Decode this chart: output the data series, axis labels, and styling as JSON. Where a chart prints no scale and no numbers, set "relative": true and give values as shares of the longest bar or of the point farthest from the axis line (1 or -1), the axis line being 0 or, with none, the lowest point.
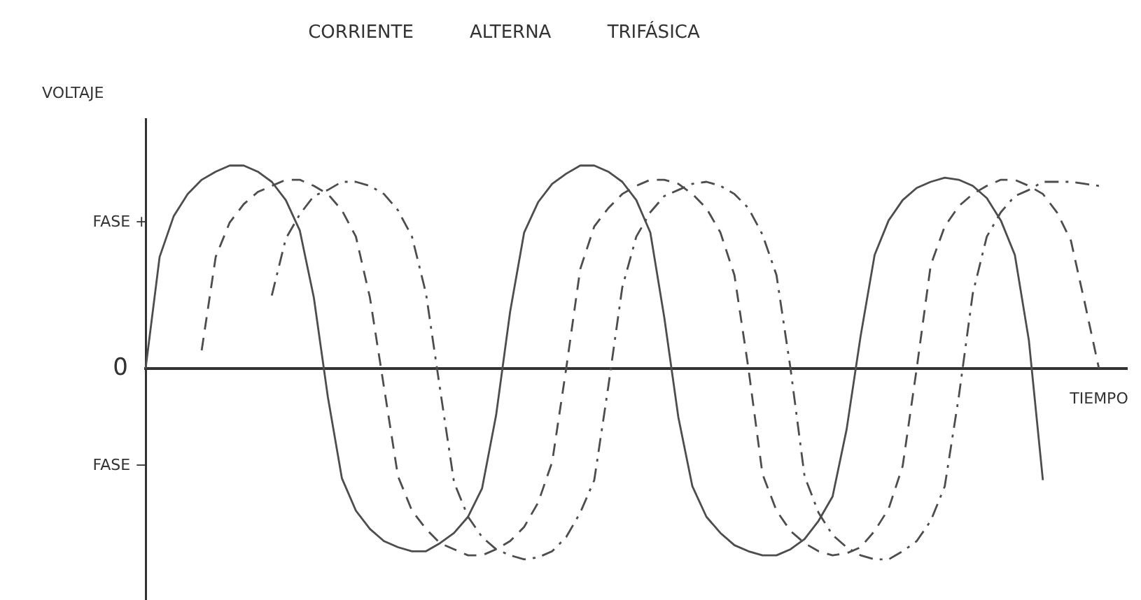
{
  "chart_data": {
    "type": "line",
    "title": "CORRIENTE ALTERNA TRIFÁSICA",
    "xlabel": "TIEMPO",
    "ylabel": "VOLTAJE",
    "relative": true,
    "legend": false,
    "grid": false,
    "marker": "none",
    "annotations": [
      "FASE +",
      "0",
      "FASE −"
    ],
    "categories": [
      null,
      null,
      null,
      null,
      null,
      null,
      null,
      null,
      null,
      null,
      null,
      null,
      null,
      null,
      null,
      null,
      null,
      null,
      null,
      null,
      null,
      null,
      null,
      null,
      null,
      null,
      null,
      null,
      null,
      null,
      null,
      null,
      null,
      null,
      null,
      null,
      null,
      null,
      null,
      null,
      null,
      null,
      null,
      null,
      null,
      null,
      null,
      null,
      null,
      null,
      null,
      null,
      null,
      null,
      null,
      null,
      null,
      null,
      null,
      null,
      null,
      null,
      null,
      null,
      null,
      null,
      null,
      null,
      null,
      null,
      null
    ],
    "series": [
      {
        "color": "#4d4d4d",
        "line_style": "solid",
        "values": [
          0,
          0.55,
          0.75,
          0.86,
          0.93,
          0.97,
          1,
          1,
          0.97,
          0.92,
          0.83,
          0.68,
          0.35,
          -0.14,
          -0.54,
          -0.7,
          -0.79,
          -0.85,
          -0.88,
          -0.9,
          -0.9,
          -0.86,
          -0.81,
          -0.73,
          -0.59,
          -0.23,
          0.28,
          0.67,
          0.82,
          0.91,
          0.96,
          1,
          1,
          0.97,
          0.92,
          0.83,
          0.67,
          0.25,
          -0.24,
          -0.58,
          -0.73,
          -0.81,
          -0.87,
          -0.9,
          -0.92,
          -0.92,
          -0.89,
          -0.84,
          -0.75,
          -0.63,
          -0.3,
          0.16,
          0.56,
          0.73,
          0.83,
          0.89,
          0.92,
          0.94,
          0.93,
          0.9,
          0.84,
          0.73,
          0.56,
          0.14,
          -0.55,
          null,
          null,
          null,
          null,
          null,
          null
        ]
      },
      {
        "color": "#4d4d4d",
        "line_style": "dashed",
        "values": [
          null,
          null,
          null,
          null,
          0.09,
          0.55,
          0.72,
          0.81,
          0.87,
          0.9,
          0.93,
          0.93,
          0.9,
          0.86,
          0.78,
          0.65,
          0.35,
          -0.09,
          -0.53,
          -0.7,
          -0.79,
          -0.86,
          -0.89,
          -0.92,
          -0.92,
          -0.89,
          -0.85,
          -0.78,
          -0.66,
          -0.46,
          0,
          0.49,
          0.7,
          0.79,
          0.86,
          0.9,
          0.93,
          0.93,
          0.91,
          0.86,
          0.79,
          0.67,
          0.46,
          0,
          -0.52,
          -0.7,
          -0.8,
          -0.86,
          -0.9,
          -0.92,
          -0.91,
          -0.88,
          -0.8,
          -0.69,
          -0.48,
          0,
          0.51,
          0.7,
          0.8,
          0.86,
          0.9,
          0.93,
          0.93,
          0.9,
          0.86,
          0.77,
          0.63,
          0.32,
          0,
          null,
          null
        ]
      },
      {
        "color": "#4d4d4d",
        "line_style": "dashdot",
        "values": [
          null,
          null,
          null,
          null,
          null,
          null,
          null,
          null,
          null,
          0.36,
          0.64,
          0.76,
          0.85,
          0.88,
          0.92,
          0.92,
          0.9,
          0.86,
          0.78,
          0.65,
          0.37,
          -0.1,
          -0.56,
          -0.73,
          -0.83,
          -0.89,
          -0.92,
          -0.94,
          -0.93,
          -0.9,
          -0.83,
          -0.71,
          -0.55,
          -0.09,
          0.4,
          0.65,
          0.77,
          0.85,
          0.88,
          0.91,
          0.92,
          0.9,
          0.86,
          0.79,
          0.66,
          0.46,
          0,
          -0.53,
          -0.71,
          -0.82,
          -0.88,
          -0.92,
          -0.94,
          -0.94,
          -0.9,
          -0.85,
          -0.75,
          -0.58,
          -0.14,
          0.37,
          0.65,
          0.77,
          0.85,
          0.88,
          0.92,
          0.92,
          0.92,
          0.91,
          0.9,
          null,
          null
        ]
      }
    ]
  }
}
